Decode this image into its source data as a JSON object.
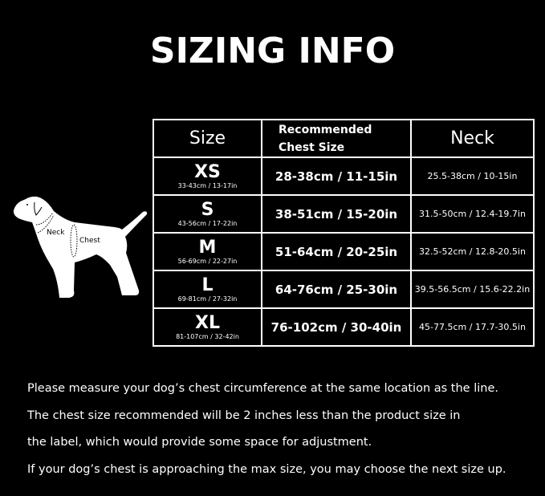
{
  "title": "SIZING INFO",
  "diagram": {
    "neck_label": "Neck",
    "chest_label": "Chest"
  },
  "table": {
    "headers": {
      "size": "Size",
      "chest_line1": "Recommended",
      "chest_line2": "Chest Size",
      "neck": "Neck"
    },
    "rows": [
      {
        "size": "XS",
        "product": "33-43cm / 13-17in",
        "chest": "28-38cm / 11-15in",
        "neck": "25.5-38cm / 10-15in"
      },
      {
        "size": "S",
        "product": "43-56cm / 17-22in",
        "chest": "38-51cm / 15-20in",
        "neck": "31.5-50cm / 12.4-19.7in"
      },
      {
        "size": "M",
        "product": "56-69cm / 22-27in",
        "chest": "51-64cm / 20-25in",
        "neck": "32.5-52cm / 12.8-20.5in"
      },
      {
        "size": "L",
        "product": "69-81cm / 27-32in",
        "chest": "64-76cm / 25-30in",
        "neck": "39.5-56.5cm / 15.6-22.2in"
      },
      {
        "size": "XL",
        "product": "81-107cm / 32-42in",
        "chest": "76-102cm / 30-40in",
        "neck": "45-77.5cm / 17.7-30.5in"
      }
    ]
  },
  "notes": [
    "Please measure your dog’s chest circumference at the same location as the line.",
    "The chest size recommended will be 2 inches less than the product size in",
    "the label, which would provide some space for adjustment.",
    "If your dog’s chest is approaching the max size, you may choose the next size up."
  ]
}
